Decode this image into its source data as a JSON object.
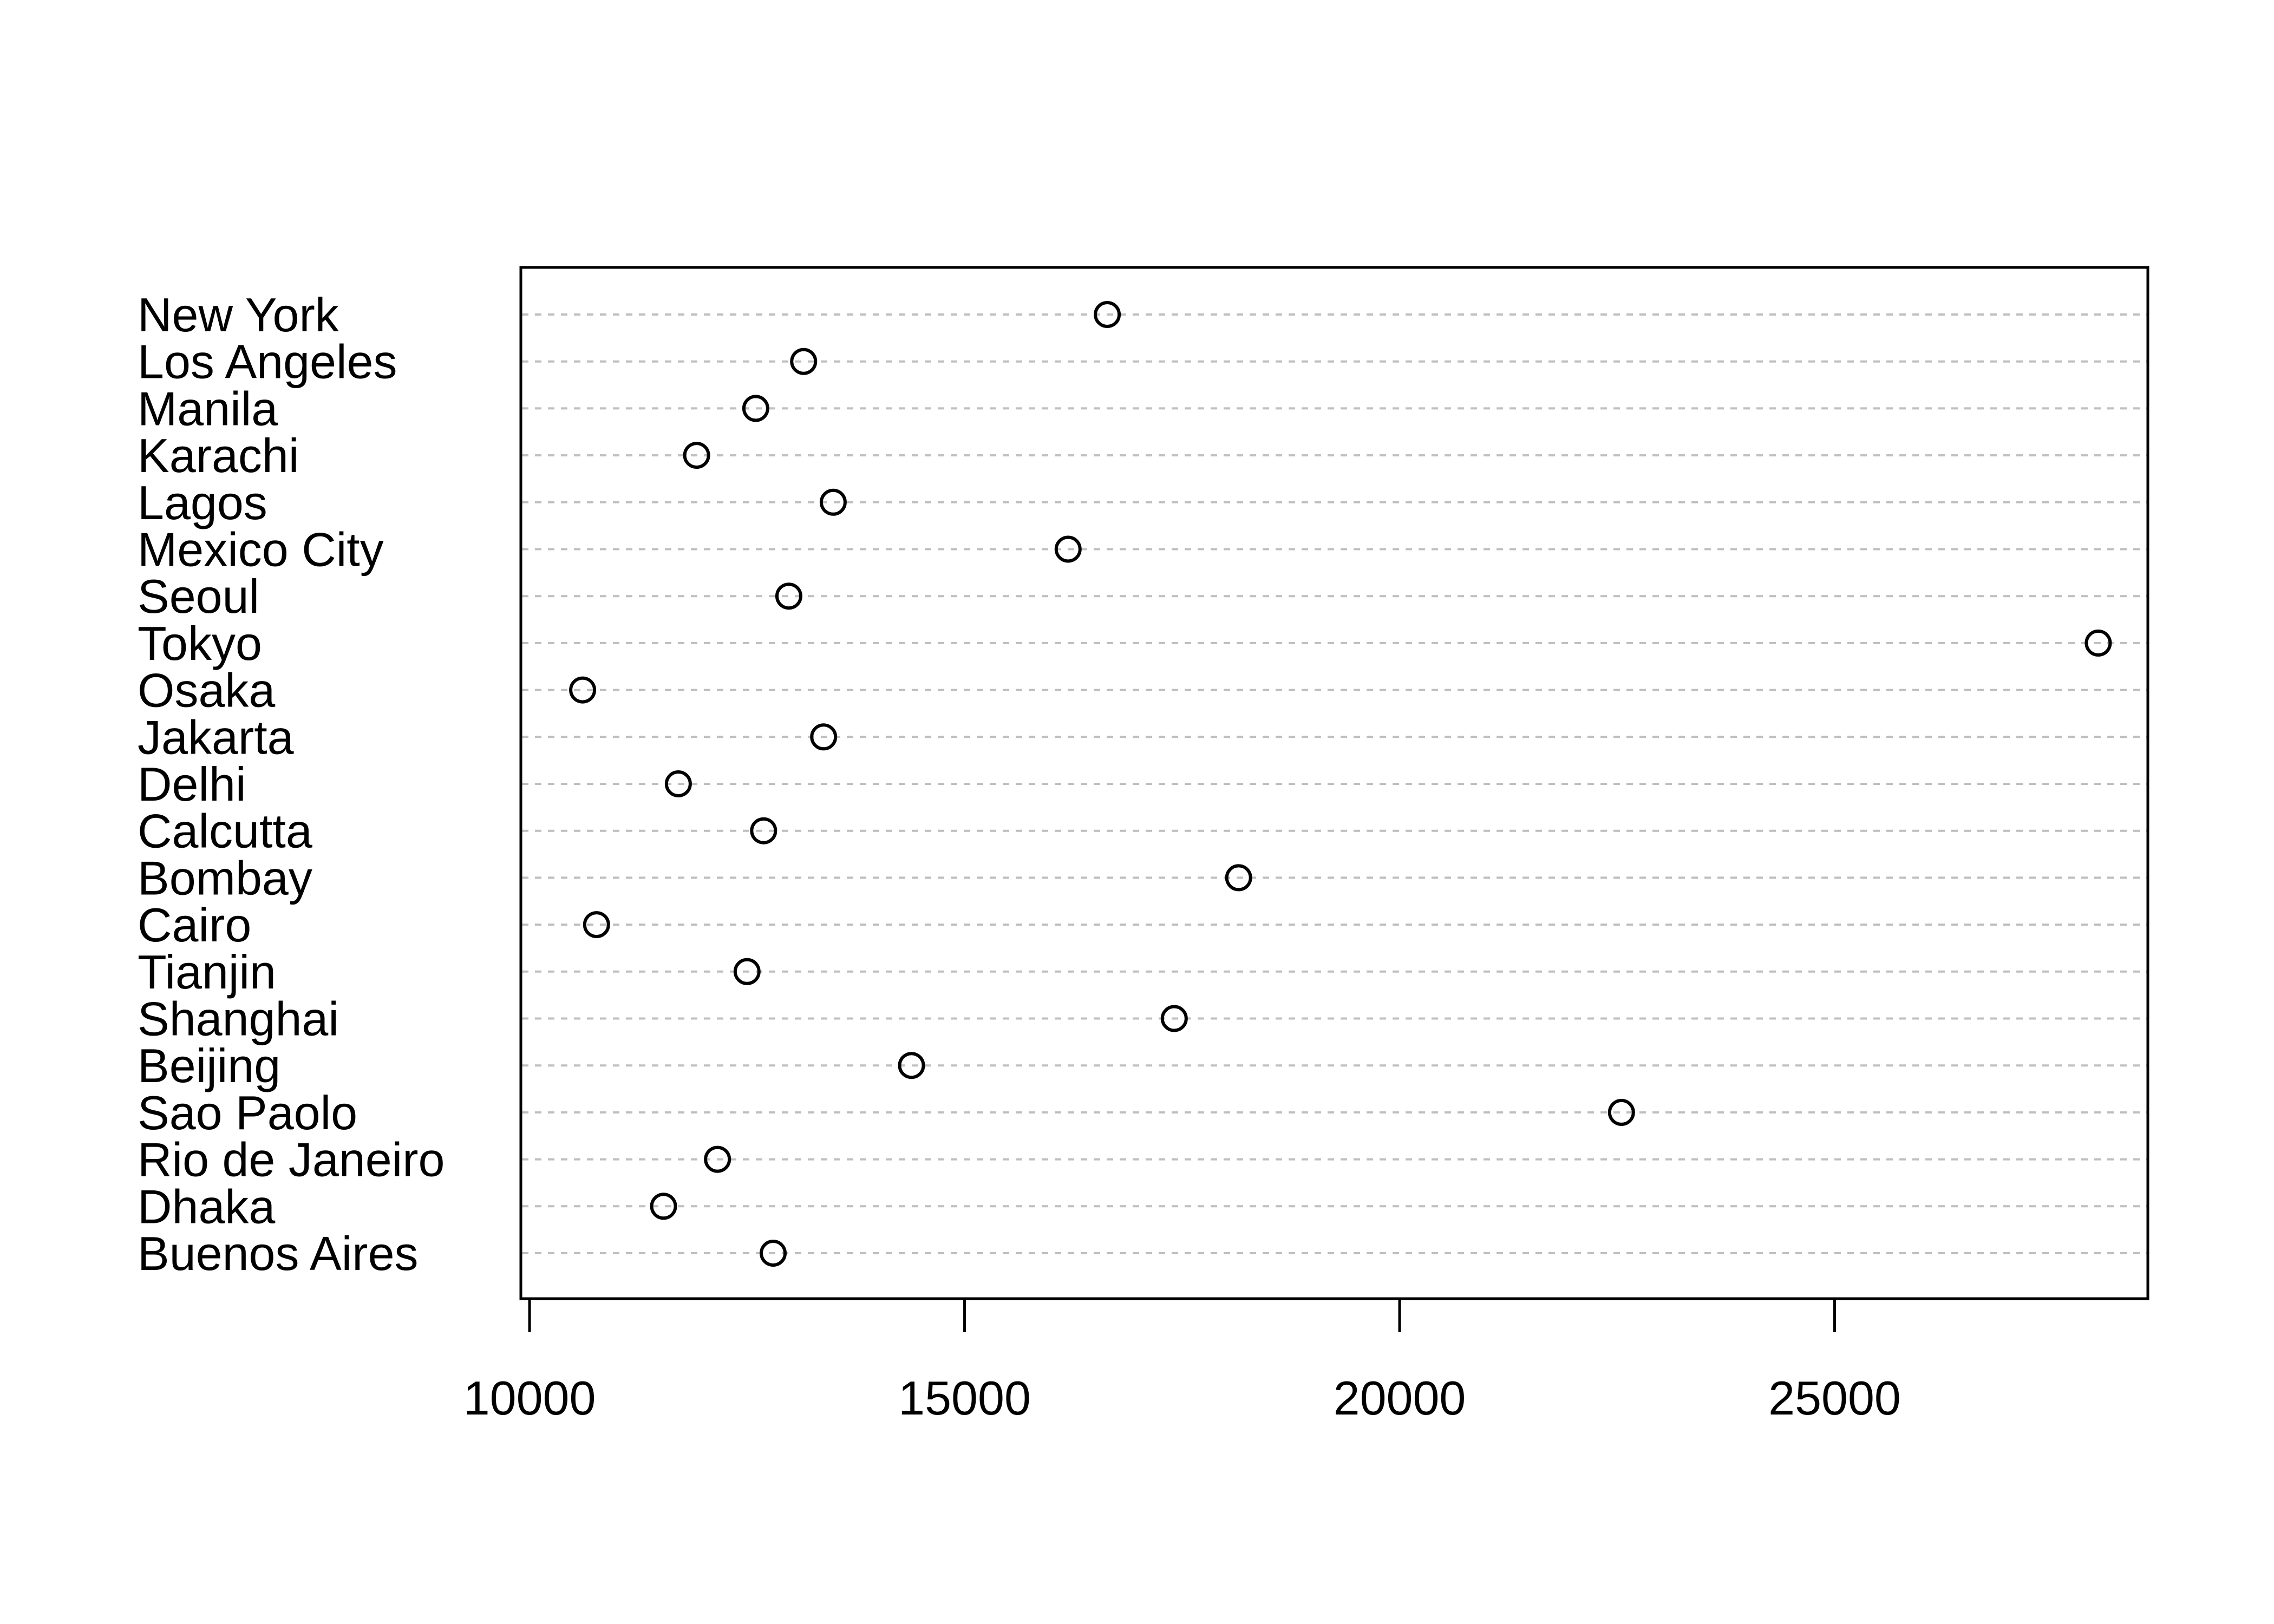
{
  "chart_data": {
    "type": "scatter",
    "title": "",
    "xlabel": "",
    "ylabel": "",
    "xlim": [
      9900,
      28600
    ],
    "xticks": [
      10000,
      15000,
      20000,
      25000
    ],
    "grid": "horizontal dashed guide lines",
    "legend": "none",
    "marker": "open circle",
    "colors": {
      "marker": "#000000",
      "guide": "#bfbfbf",
      "frame": "#000000"
    },
    "categories": [
      "New York",
      "Los Angeles",
      "Manila",
      "Karachi",
      "Lagos",
      "Mexico City",
      "Seoul",
      "Tokyo",
      "Osaka",
      "Jakarta",
      "Delhi",
      "Calcutta",
      "Bombay",
      "Cairo",
      "Tianjin",
      "Shanghai",
      "Beijing",
      "Sao Paolo",
      "Rio de Janeiro",
      "Dhaka",
      "Buenos Aires"
    ],
    "values": [
      16640,
      13150,
      12600,
      11920,
      13490,
      16190,
      12980,
      28030,
      10610,
      13380,
      11710,
      12690,
      18150,
      10770,
      12500,
      17410,
      14390,
      22550,
      12160,
      11540,
      12800
    ]
  }
}
